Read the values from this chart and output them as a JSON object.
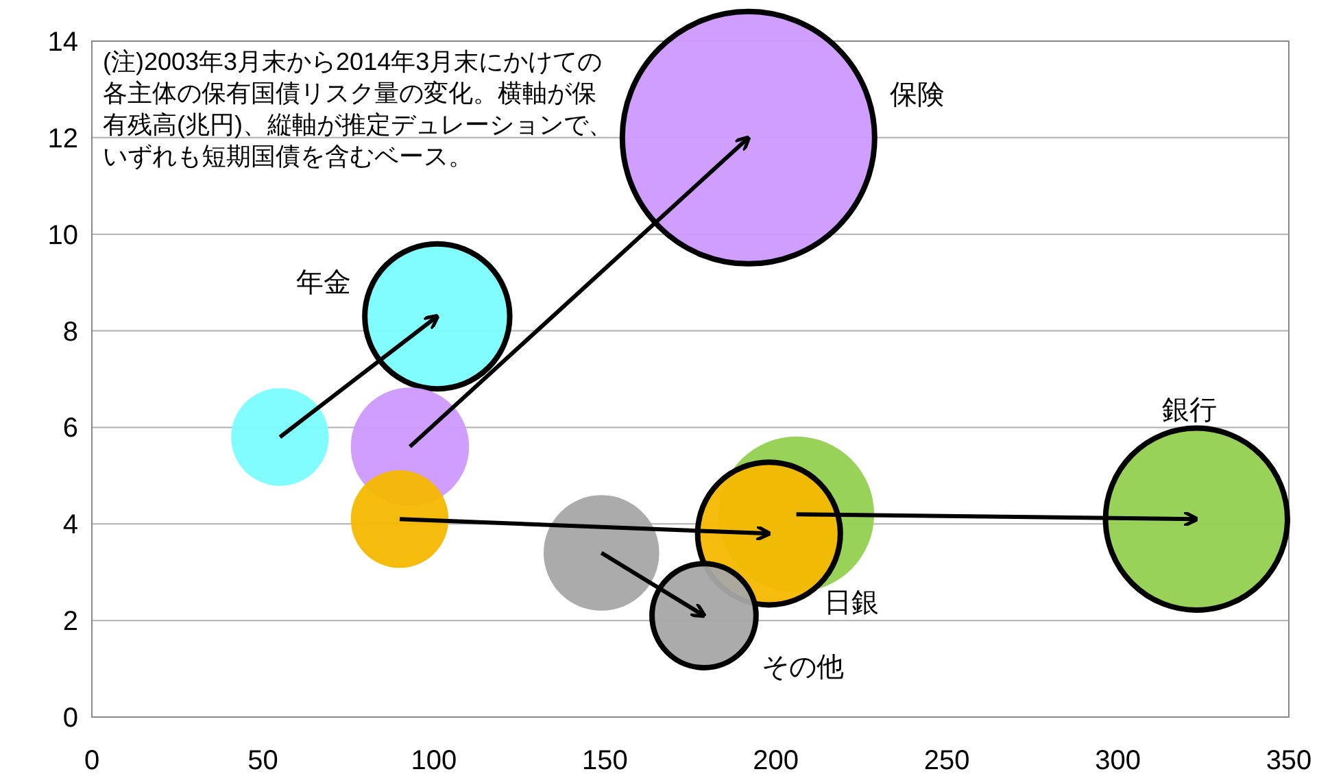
{
  "chart_data": {
    "type": "bubble",
    "xlim": [
      0,
      350
    ],
    "xticks": [
      0,
      50,
      100,
      150,
      200,
      250,
      300,
      350
    ],
    "ylim": [
      0,
      14
    ],
    "yticks": [
      0,
      2,
      4,
      6,
      8,
      10,
      12,
      14
    ],
    "grid": "y",
    "series": [
      {
        "name": "年金",
        "color": "#7afcff",
        "x": [
          55,
          101
        ],
        "values": [
          5.8,
          8.3
        ],
        "sizes": [
          0.15,
          0.33
        ]
      },
      {
        "name": "保険",
        "color": "#cc99ff",
        "x": [
          93,
          192
        ],
        "values": [
          5.6,
          12.0
        ],
        "sizes": [
          0.22,
          1
        ]
      },
      {
        "name": "銀行",
        "color": "#92d050",
        "x": [
          206,
          323
        ],
        "values": [
          4.2,
          4.1
        ],
        "sizes": [
          0.38,
          0.52
        ]
      },
      {
        "name": "日銀",
        "color": "#f5b800",
        "x": [
          90,
          198
        ],
        "values": [
          4.1,
          3.8
        ],
        "sizes": [
          0.15,
          0.32
        ]
      },
      {
        "name": "その他",
        "color": "#a6a6a6",
        "x": [
          149,
          179
        ],
        "values": [
          3.4,
          2.1
        ],
        "sizes": [
          0.21,
          0.17
        ]
      }
    ],
    "annotations": [
      "(注)2003年3月末から2014年3月末にかけての各主体の保有国債リスク量の変化。横軸が保有残高(兆円)、縦軸が推定デュレーションで、いずれも短期国債を含むベース。"
    ]
  }
}
